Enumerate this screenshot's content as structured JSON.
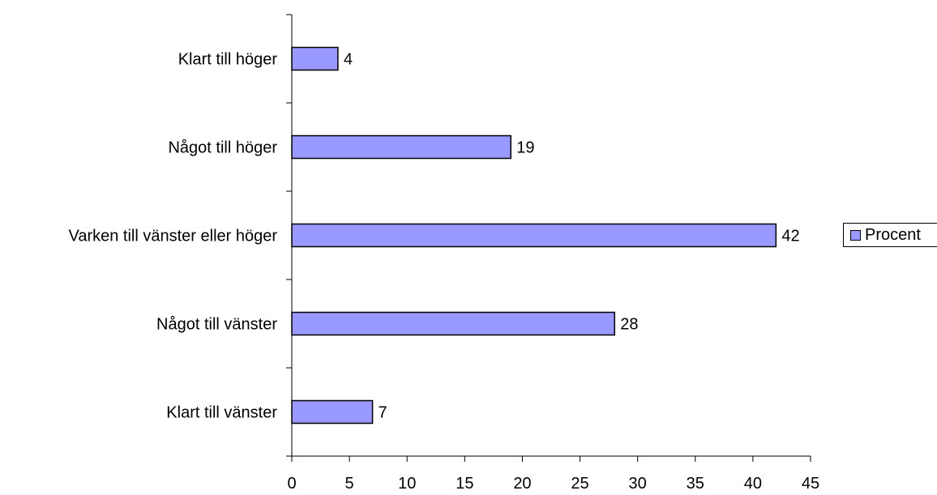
{
  "chart_data": {
    "type": "bar",
    "orientation": "horizontal",
    "categories": [
      "Klart till vänster",
      "Något till vänster",
      "Varken till vänster eller höger",
      "Något till höger",
      "Klart till höger"
    ],
    "series": [
      {
        "name": "Procent",
        "values": [
          7,
          28,
          42,
          19,
          4
        ]
      }
    ],
    "data_labels": [
      "7",
      "28",
      "42",
      "19",
      "4"
    ],
    "xticks": [
      "0",
      "5",
      "10",
      "15",
      "20",
      "25",
      "30",
      "35",
      "40",
      "45"
    ],
    "xlim": [
      0,
      45
    ],
    "title": "",
    "xlabel": "",
    "ylabel": "",
    "grid": false,
    "legend": "right",
    "bar_color": "#9999ff",
    "outline_color": "#000000"
  }
}
